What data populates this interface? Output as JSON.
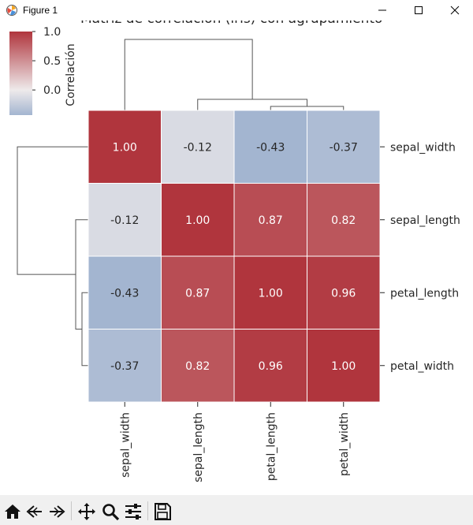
{
  "window": {
    "title": "Figure 1"
  },
  "toolbar": {
    "buttons": [
      {
        "name": "home-icon"
      },
      {
        "name": "back-arrow-icon"
      },
      {
        "name": "forward-arrow-icon"
      },
      {
        "name": "pan-move-icon"
      },
      {
        "name": "zoom-magnifier-icon"
      },
      {
        "name": "configure-subplots-icon"
      },
      {
        "name": "save-disk-icon"
      }
    ]
  },
  "chart_data": {
    "type": "heatmap",
    "title": "Matriz de correlación (iris) con agrupamiento",
    "row_labels": [
      "sepal_width",
      "sepal_length",
      "petal_length",
      "petal_width"
    ],
    "col_labels": [
      "sepal_width",
      "sepal_length",
      "petal_length",
      "petal_width"
    ],
    "values": [
      [
        1.0,
        -0.12,
        -0.43,
        -0.37
      ],
      [
        -0.12,
        1.0,
        0.87,
        0.82
      ],
      [
        -0.43,
        0.87,
        1.0,
        0.96
      ],
      [
        -0.37,
        0.82,
        0.96,
        1.0
      ]
    ],
    "cell_labels": [
      [
        "1.00",
        "-0.12",
        "-0.43",
        "-0.37"
      ],
      [
        "-0.12",
        "1.00",
        "0.87",
        "0.82"
      ],
      [
        "-0.43",
        "0.87",
        "1.00",
        "0.96"
      ],
      [
        "-0.37",
        "0.82",
        "0.96",
        "1.00"
      ]
    ],
    "colorbar": {
      "label": "Correlación",
      "range": [
        -0.43,
        1.0
      ],
      "ticks": [
        1.0,
        0.5,
        0.0
      ],
      "tick_labels": [
        "1.0",
        "0.5",
        "0.0"
      ]
    },
    "colormap": {
      "low": "#a3b5d0",
      "mid": "#eeeaeb",
      "high": "#b0353d"
    },
    "row_dendrogram": true,
    "col_dendrogram": true
  }
}
